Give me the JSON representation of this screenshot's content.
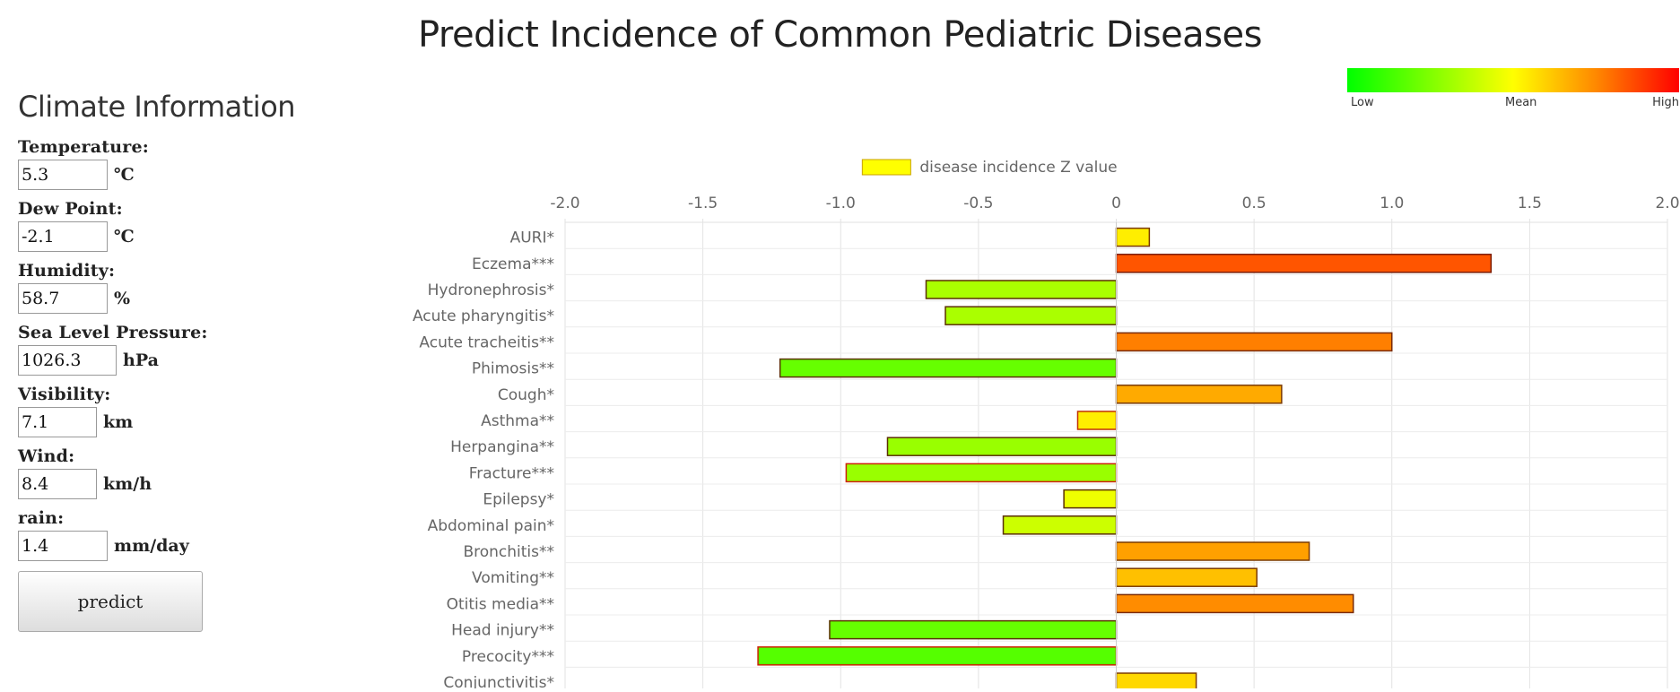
{
  "page": {
    "title": "Predict Incidence of Common Pediatric Diseases"
  },
  "sidebar": {
    "heading": "Climate Information",
    "fields": [
      {
        "label": "Temperature:",
        "value": "5.3",
        "unit": "℃"
      },
      {
        "label": "Dew Point:",
        "value": "-2.1",
        "unit": "℃"
      },
      {
        "label": "Humidity:",
        "value": "58.7",
        "unit": "%"
      },
      {
        "label": "Sea Level Pressure:",
        "value": "1026.3",
        "unit": "hPa"
      },
      {
        "label": "Visibility:",
        "value": "7.1",
        "unit": "km"
      },
      {
        "label": "Wind:",
        "value": "8.4",
        "unit": "km/h"
      },
      {
        "label": "rain:",
        "value": "1.4",
        "unit": "mm/day"
      }
    ],
    "button_label": "predict"
  },
  "color_scale": {
    "low_label": "Low",
    "mean_label": "Mean",
    "high_label": "High",
    "colors": [
      "#00ff00",
      "#ffff00",
      "#ff8800",
      "#ff0000"
    ]
  },
  "chart_data": {
    "type": "bar",
    "orientation": "horizontal",
    "xlim": [
      -2.0,
      2.0
    ],
    "x_ticks": [
      "-2.0",
      "-1.5",
      "-1.0",
      "-0.5",
      "0",
      "0.5",
      "1.0",
      "1.5",
      "2.0"
    ],
    "grid": true,
    "legend_position": "top",
    "series": [
      {
        "name": "disease incidence Z value",
        "legend_color": "#ffff00",
        "categories": [
          "AURI*",
          "Eczema***",
          "Hydronephrosis*",
          "Acute pharyngitis*",
          "Acute tracheitis**",
          "Phimosis**",
          "Cough*",
          "Asthma**",
          "Herpangina**",
          "Fracture***",
          "Epilepsy*",
          "Abdominal pain*",
          "Bronchitis**",
          "Vomiting**",
          "Otitis media**",
          "Head injury**",
          "Precocity***",
          "Conjunctivitis*"
        ],
        "values": [
          0.12,
          1.36,
          -0.69,
          -0.62,
          1.0,
          -1.22,
          0.6,
          -0.14,
          -0.83,
          -0.98,
          -0.19,
          -0.41,
          0.7,
          0.51,
          0.86,
          -1.04,
          -1.3,
          0.29
        ],
        "colors": [
          "#ffee00",
          "#ff5500",
          "#aaff00",
          "#aaff00",
          "#ff7f00",
          "#66ff00",
          "#ffaa00",
          "#ffee00",
          "#99ff00",
          "#99ff00",
          "#eeff00",
          "#ccff00",
          "#ffa000",
          "#ffc000",
          "#ff8c00",
          "#66ff00",
          "#55ff00",
          "#ffd800"
        ],
        "border_colors": [
          "#7a3a00",
          "#7a1a00",
          "#5a3000",
          "#5a3000",
          "#7a2a00",
          "#5a3000",
          "#7a3a00",
          "#c03000",
          "#5a3000",
          "#cc2200",
          "#5a3000",
          "#5a3000",
          "#7a3a00",
          "#7a3a00",
          "#7a2a00",
          "#5a3000",
          "#cc2200",
          "#7a3a00"
        ]
      }
    ]
  }
}
